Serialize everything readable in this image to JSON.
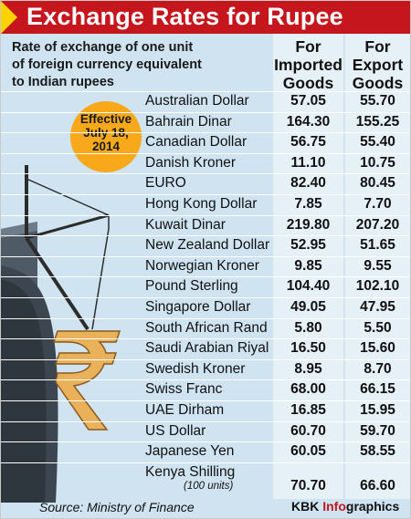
{
  "header": {
    "title": "Exchange Rates for Rupee"
  },
  "intro": [
    "Rate of exchange of one unit",
    "of foreign currency equivalent",
    "to Indian rupees"
  ],
  "columns": {
    "imported": [
      "For",
      "Imported",
      "Goods"
    ],
    "export": [
      "For",
      "Export",
      "Goods"
    ]
  },
  "badge": [
    "Effective",
    "July 18,",
    "2014"
  ],
  "rows": [
    {
      "currency": "Australian Dollar",
      "imported": "57.05",
      "export": "55.70"
    },
    {
      "currency": "Bahrain Dinar",
      "imported": "164.30",
      "export": "155.25"
    },
    {
      "currency": "Canadian Dollar",
      "imported": "56.75",
      "export": "55.40"
    },
    {
      "currency": "Danish Kroner",
      "imported": "11.10",
      "export": "10.75"
    },
    {
      "currency": "EURO",
      "imported": "82.40",
      "export": "80.45"
    },
    {
      "currency": "Hong Kong Dollar",
      "imported": "7.85",
      "export": "7.70"
    },
    {
      "currency": "Kuwait Dinar",
      "imported": "219.80",
      "export": "207.20"
    },
    {
      "currency": "New Zealand Dollar",
      "imported": "52.95",
      "export": "51.65"
    },
    {
      "currency": "Norwegian Kroner",
      "imported": "9.85",
      "export": "9.55"
    },
    {
      "currency": "Pound Sterling",
      "imported": "104.40",
      "export": "102.10"
    },
    {
      "currency": "Singapore Dollar",
      "imported": "49.05",
      "export": "47.95"
    },
    {
      "currency": "South African Rand",
      "imported": "5.80",
      "export": "5.50"
    },
    {
      "currency": "Saudi Arabian Riyal",
      "imported": "16.50",
      "export": "15.60"
    },
    {
      "currency": "Swedish Kroner",
      "imported": "8.95",
      "export": "8.70"
    },
    {
      "currency": "Swiss Franc",
      "imported": "68.00",
      "export": "66.15"
    },
    {
      "currency": "UAE Dirham",
      "imported": "16.85",
      "export": "15.95"
    },
    {
      "currency": "US Dollar",
      "imported": "60.70",
      "export": "59.70"
    },
    {
      "currency": "Japanese Yen",
      "imported": "60.05",
      "export": "58.55"
    },
    {
      "currency": "Kenya Shilling",
      "note": "(100 units)",
      "imported": "70.70",
      "export": "66.60"
    }
  ],
  "footer": {
    "source": "Source: Ministry of Finance",
    "credit_prefix": "KBK ",
    "credit_highlight": "Info",
    "credit_suffix": "graphics"
  },
  "colors": {
    "header_red": "#c4161c",
    "header_triangle": "#ffd200",
    "background_blue": "#cfe3f1",
    "column_light": "#e6f0f7",
    "badge_orange": "#f7a81b",
    "rupee_gold": "#e8b15a"
  },
  "icons": {
    "rupee": "rupee-symbol",
    "crane": "crane-illustration",
    "ship": "ship-hull"
  }
}
